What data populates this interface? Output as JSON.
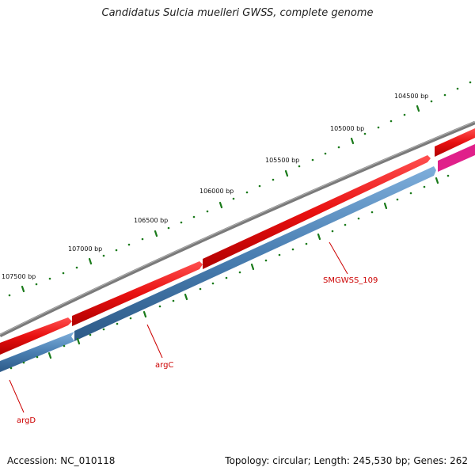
{
  "title": "Candidatus Sulcia muelleri GWSS, complete genome",
  "footer": {
    "accession": "Accession: NC_010118",
    "summary": "Topology: circular; Length: 245,530 bp; Genes: 262"
  },
  "scale_labels": [
    "104500 bp",
    "105000 bp",
    "105500 bp",
    "106000 bp",
    "106500 bp",
    "107000 bp",
    "107500 bp"
  ],
  "gene_labels": [
    "SMGWSS_109",
    "argC",
    "argD"
  ],
  "colors": {
    "backbone": "#7a7a7a",
    "forward_gene": "#e81010",
    "forward_gene_alt": "#e0208a",
    "reverse_gene": "#4a7fb2",
    "tick": "#1a7a1a",
    "label": "#cc0000"
  }
}
